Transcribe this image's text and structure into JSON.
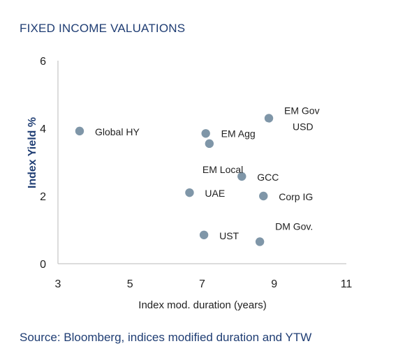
{
  "title": "FIXED INCOME VALUATIONS",
  "source": "Source: Bloomberg, indices modified duration and YTW",
  "colors": {
    "marker": "#7f96a8",
    "axis": "#c8c8c8",
    "text": "#1f1f1f",
    "title": "#1f3d73"
  },
  "chart_data": {
    "type": "scatter",
    "title": "FIXED INCOME VALUATIONS",
    "xlabel": "Index mod. duration (years)",
    "ylabel": "Index Yield %",
    "xlim": [
      3,
      11
    ],
    "ylim": [
      0,
      6
    ],
    "xticks": [
      3,
      5,
      7,
      9,
      11
    ],
    "yticks": [
      0,
      2,
      4,
      6
    ],
    "grid": false,
    "legend": "none",
    "points": [
      {
        "label": "Global HY",
        "x": 3.6,
        "y": 3.92
      },
      {
        "label": "EM Agg",
        "x": 7.1,
        "y": 3.85
      },
      {
        "label": "",
        "x": 7.2,
        "y": 3.55
      },
      {
        "label": "EM Gov USD",
        "x": 8.85,
        "y": 4.3
      },
      {
        "label": "EM Local",
        "x": 8.1,
        "y": 2.58
      },
      {
        "label": "GCC",
        "x": 8.1,
        "y": 2.58
      },
      {
        "label": "UAE",
        "x": 6.65,
        "y": 2.1
      },
      {
        "label": "Corp IG",
        "x": 8.7,
        "y": 2.0
      },
      {
        "label": "UST",
        "x": 7.05,
        "y": 0.85
      },
      {
        "label": "DM Gov.",
        "x": 8.6,
        "y": 0.65
      }
    ]
  }
}
